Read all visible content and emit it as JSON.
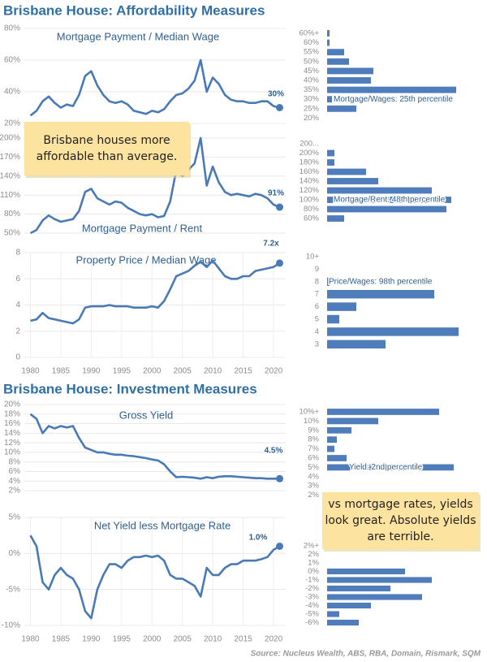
{
  "headings": [
    "Brisbane House: Affordability Measures",
    "Brisbane House: Investment Measures"
  ],
  "notes": [
    {
      "lines": [
        "Brisbane houses more",
        "affordable than average."
      ]
    },
    {
      "lines": [
        "vs mortgage rates, yields",
        "look great. Absolute yields",
        "are terrible."
      ]
    }
  ],
  "source": "Source: Nucleus Wealth, ABS, RBA, Domain, Rismark, SQM",
  "chart_data": [
    {
      "type": "line",
      "title": "Mortgage Payment / Median Wage",
      "color": "#4a7ab5",
      "x": [
        1980,
        1981,
        1982,
        1983,
        1984,
        1985,
        1986,
        1987,
        1988,
        1989,
        1990,
        1991,
        1992,
        1993,
        1994,
        1995,
        1996,
        1997,
        1998,
        1999,
        2000,
        2001,
        2002,
        2003,
        2004,
        2005,
        2006,
        2007,
        2008,
        2009,
        2010,
        2011,
        2012,
        2013,
        2014,
        2015,
        2016,
        2017,
        2018,
        2019,
        2020,
        2021
      ],
      "values": [
        25,
        28,
        34,
        37,
        33,
        30,
        32,
        31,
        38,
        50,
        53,
        44,
        38,
        34,
        33,
        34,
        32,
        28,
        27,
        26,
        28,
        27,
        29,
        34,
        38,
        39,
        42,
        47,
        60,
        40,
        49,
        45,
        38,
        35,
        34,
        34,
        33,
        33,
        34,
        34,
        31,
        30
      ],
      "end_label": "30%",
      "xlim": [
        1979,
        2022
      ],
      "ylim": [
        20,
        80
      ],
      "yticks": [
        {
          "value": 20,
          "label": "20%"
        },
        {
          "value": 40,
          "label": "40%"
        },
        {
          "value": 60,
          "label": "60%"
        },
        {
          "value": 80,
          "label": "80%"
        }
      ],
      "grid": true
    },
    {
      "type": "line",
      "title": "Mortgage Payment / Rent",
      "color": "#4a7ab5",
      "x": [
        1980,
        1981,
        1982,
        1983,
        1984,
        1985,
        1986,
        1987,
        1988,
        1989,
        1990,
        1991,
        1992,
        1993,
        1994,
        1995,
        1996,
        1997,
        1998,
        1999,
        2000,
        2001,
        2002,
        2003,
        2004,
        2005,
        2006,
        2007,
        2008,
        2009,
        2010,
        2011,
        2012,
        2013,
        2014,
        2015,
        2016,
        2017,
        2018,
        2019,
        2020,
        2021
      ],
      "values": [
        50,
        55,
        70,
        78,
        72,
        68,
        70,
        72,
        85,
        115,
        120,
        105,
        100,
        95,
        100,
        98,
        90,
        85,
        80,
        78,
        80,
        75,
        77,
        100,
        150,
        140,
        150,
        160,
        200,
        125,
        155,
        130,
        115,
        110,
        112,
        110,
        108,
        112,
        110,
        105,
        95,
        91
      ],
      "end_label": "91%",
      "xlim": [
        1979,
        2022
      ],
      "ylim": [
        50,
        200
      ],
      "yticks": [
        {
          "value": 50,
          "label": "50%"
        },
        {
          "value": 80,
          "label": "80%"
        },
        {
          "value": 110,
          "label": "110%"
        },
        {
          "value": 140,
          "label": "140%"
        },
        {
          "value": 170,
          "label": "170%"
        },
        {
          "value": 200,
          "label": "200%"
        }
      ],
      "grid": true
    },
    {
      "type": "line",
      "title": "Property Price / Median Wage",
      "color": "#4a7ab5",
      "x": [
        1980,
        1981,
        1982,
        1983,
        1984,
        1985,
        1986,
        1987,
        1988,
        1989,
        1990,
        1991,
        1992,
        1993,
        1994,
        1995,
        1996,
        1997,
        1998,
        1999,
        2000,
        2001,
        2002,
        2003,
        2004,
        2005,
        2006,
        2007,
        2008,
        2009,
        2010,
        2011,
        2012,
        2013,
        2014,
        2015,
        2016,
        2017,
        2018,
        2019,
        2020,
        2021
      ],
      "values": [
        2.8,
        2.9,
        3.4,
        3.0,
        2.9,
        2.8,
        2.7,
        2.6,
        2.9,
        3.8,
        3.9,
        3.9,
        3.9,
        4.0,
        3.9,
        3.9,
        3.9,
        3.8,
        3.8,
        3.8,
        3.9,
        3.8,
        4.3,
        5.2,
        6.2,
        6.4,
        6.6,
        7.0,
        7.3,
        6.9,
        7.4,
        6.8,
        6.2,
        6.0,
        6.0,
        6.2,
        6.2,
        6.6,
        6.7,
        6.8,
        6.9,
        7.2
      ],
      "end_label": "7.2x",
      "xlim": [
        1979,
        2022
      ],
      "ylim": [
        0,
        8
      ],
      "yticks": [
        0,
        2,
        4,
        6,
        8
      ],
      "xticks": [
        1980,
        1985,
        1990,
        1995,
        2000,
        2005,
        2010,
        2015,
        2020
      ],
      "grid": true
    },
    {
      "type": "line",
      "title": "Gross Yield",
      "color": "#4a7ab5",
      "x": [
        1980,
        1981,
        1982,
        1983,
        1984,
        1985,
        1986,
        1987,
        1988,
        1989,
        1990,
        1991,
        1992,
        1993,
        1994,
        1995,
        1996,
        1997,
        1998,
        1999,
        2000,
        2001,
        2002,
        2003,
        2004,
        2005,
        2006,
        2007,
        2008,
        2009,
        2010,
        2011,
        2012,
        2013,
        2014,
        2015,
        2016,
        2017,
        2018,
        2019,
        2020,
        2021
      ],
      "values": [
        18,
        17,
        14,
        15.5,
        15,
        15.5,
        15.2,
        15.5,
        13,
        11,
        10.5,
        10,
        10,
        9.7,
        9.5,
        9.5,
        9.3,
        9.2,
        9,
        8.8,
        8.5,
        8.3,
        7.5,
        6,
        4.8,
        4.9,
        4.8,
        4.7,
        4.5,
        4.8,
        4.6,
        4.9,
        5,
        5,
        4.9,
        4.8,
        4.7,
        4.6,
        4.6,
        4.5,
        4.5,
        4.5
      ],
      "end_label": "4.5%",
      "xlim": [
        1979,
        2022
      ],
      "ylim": [
        2,
        20
      ],
      "yticks": [
        {
          "value": 2,
          "label": "2%"
        },
        {
          "value": 4,
          "label": "4%"
        },
        {
          "value": 6,
          "label": "6%"
        },
        {
          "value": 8,
          "label": "8%"
        },
        {
          "value": 10,
          "label": "10%"
        },
        {
          "value": 12,
          "label": "12%"
        },
        {
          "value": 14,
          "label": "14%"
        },
        {
          "value": 16,
          "label": "16%"
        },
        {
          "value": 18,
          "label": "18%"
        },
        {
          "value": 20,
          "label": "20%"
        }
      ],
      "grid": true
    },
    {
      "type": "line",
      "title": "Net Yield less Mortgage Rate",
      "color": "#4a7ab5",
      "x": [
        1980,
        1981,
        1982,
        1983,
        1984,
        1985,
        1986,
        1987,
        1988,
        1989,
        1990,
        1991,
        1992,
        1993,
        1994,
        1995,
        1996,
        1997,
        1998,
        1999,
        2000,
        2001,
        2002,
        2003,
        2004,
        2005,
        2006,
        2007,
        2008,
        2009,
        2010,
        2011,
        2012,
        2013,
        2014,
        2015,
        2016,
        2017,
        2018,
        2019,
        2020,
        2021
      ],
      "values": [
        2.5,
        1,
        -4,
        -5,
        -3,
        -2,
        -3,
        -3.5,
        -5,
        -8,
        -9,
        -5,
        -3,
        -1.5,
        -1.5,
        -2,
        -1,
        -0.5,
        -0.5,
        -0.3,
        -0.5,
        -0.3,
        -1,
        -3,
        -3.5,
        -3.5,
        -4,
        -4.5,
        -6,
        -2,
        -3,
        -3,
        -2,
        -1.5,
        -1.5,
        -1,
        -1,
        -1,
        -0.8,
        -0.5,
        0.5,
        1.0
      ],
      "end_label": "1.0%",
      "xlim": [
        1979,
        2022
      ],
      "ylim": [
        -10,
        5
      ],
      "yticks": [
        {
          "value": -10,
          "label": "-10%"
        },
        {
          "value": -5,
          "label": "-5%"
        },
        {
          "value": 0,
          "label": "0%"
        },
        {
          "value": 5,
          "label": "5%"
        }
      ],
      "xticks": [
        1980,
        1985,
        1990,
        1995,
        2000,
        2005,
        2010,
        2015,
        2020
      ],
      "grid": true
    },
    {
      "type": "barh",
      "color": "#4f7cba",
      "annotation": "Mortgage/Wages: 25th percentile",
      "categories": [
        "60%+",
        "60%",
        "55%",
        "50%",
        "45%",
        "40%",
        "35%",
        "30%",
        "25%",
        "20%"
      ],
      "values": [
        1,
        1,
        7,
        9,
        19,
        18,
        53,
        2,
        12,
        0
      ]
    },
    {
      "type": "barh",
      "color": "#4f7cba",
      "annotation": "Mortgage/Rent: 48th percentile",
      "categories": [
        "200...",
        "200%",
        "180%",
        "160%",
        "140%",
        "120%",
        "100%",
        "80%",
        "60%"
      ],
      "values": [
        0,
        3,
        3,
        16,
        21,
        43,
        51,
        49,
        7
      ]
    },
    {
      "type": "barh",
      "color": "#4f7cba",
      "annotation": "Price/Wages: 98th percentile",
      "categories": [
        "10+",
        "9",
        "8",
        "7",
        "6",
        "5",
        "4",
        "3"
      ],
      "values": [
        0,
        0,
        1,
        44,
        12,
        5,
        54,
        24
      ]
    },
    {
      "type": "barh",
      "color": "#4f7cba",
      "annotation": "Yield: 2nd percentile",
      "categories": [
        "10%+",
        "10%",
        "9%",
        "8%",
        "7%",
        "6%",
        "5%",
        "4%",
        "3%",
        "2%"
      ],
      "values": [
        46,
        21,
        10,
        4,
        3,
        8,
        52,
        0,
        0,
        0
      ]
    },
    {
      "type": "barh",
      "color": "#4f7cba",
      "categories": [
        "2%+",
        "2%",
        "1%",
        "0%",
        "-1%",
        "-2%",
        "-3%",
        "-4%",
        "-5%",
        "-6%"
      ],
      "values": [
        0,
        0,
        0,
        32,
        43,
        26,
        39,
        18,
        5,
        13
      ]
    }
  ]
}
